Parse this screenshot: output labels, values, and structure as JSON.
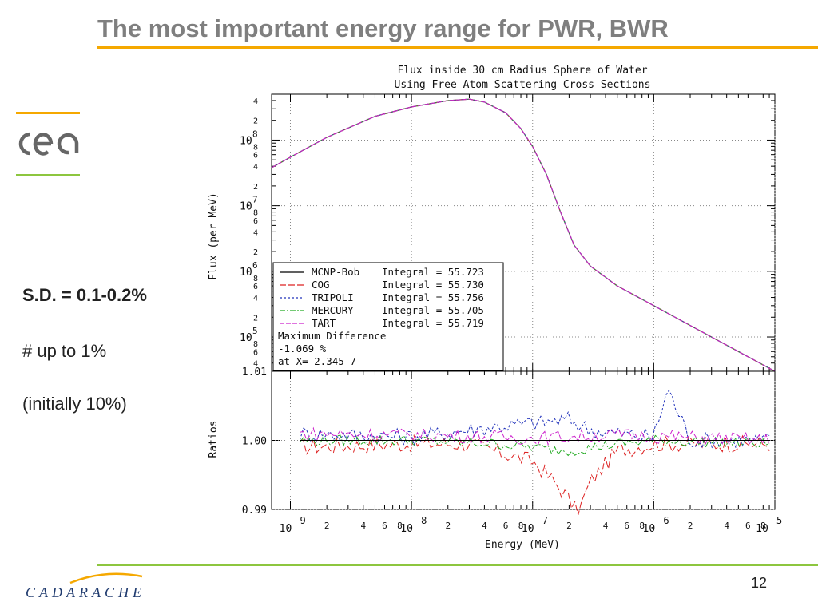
{
  "slide": {
    "title": "The most important energy range for PWR, BWR",
    "notes": [
      "S.D. = 0.1-0.2%",
      "# up to 1%",
      "(initially 10%)"
    ],
    "page_number": "12",
    "footer_logo": "CADARACHE",
    "colors": {
      "accent_orange": "#f5a800",
      "accent_green": "#8dc63f",
      "title_gray": "#7f7f7f"
    }
  },
  "chart_data": [
    {
      "type": "line",
      "title": "Flux inside 30 cm Radius Sphere of Water",
      "subtitle": "Using Free Atom Scattering Cross Sections",
      "xlabel": "Energy (MeV)",
      "ylabel": "Flux (per MeV)",
      "x_scale": "log",
      "y_scale": "log",
      "xlim": [
        7e-10,
        1e-05
      ],
      "ylim": [
        30000.0,
        500000000.0
      ],
      "grid": true,
      "x_ticks": [
        {
          "mant": "10",
          "exp": "-9"
        },
        {
          "mant": "10",
          "exp": "-8"
        },
        {
          "mant": "10",
          "exp": "-7"
        },
        {
          "mant": "10",
          "exp": "-6"
        },
        {
          "mant": "10",
          "exp": "-5"
        }
      ],
      "x_minor_labels": [
        "2",
        "4",
        "6",
        "8"
      ],
      "y_ticks": [
        {
          "mant": "10",
          "exp": "5"
        },
        {
          "mant": "10",
          "exp": "6"
        },
        {
          "mant": "10",
          "exp": "7"
        },
        {
          "mant": "10",
          "exp": "8"
        }
      ],
      "y_minor_labels": [
        "2",
        "4",
        "6",
        "8"
      ],
      "series": [
        {
          "name": "MCNP-Bob",
          "integral_label": "Integral = 55.723",
          "color": "#000000",
          "dash": ""
        },
        {
          "name": "COG",
          "integral_label": "Integral = 55.730",
          "color": "#dd2222",
          "dash": "8,3"
        },
        {
          "name": "TRIPOLI",
          "integral_label": "Integral = 55.756",
          "color": "#2233bb",
          "dash": "3,2"
        },
        {
          "name": "MERCURY",
          "integral_label": "Integral = 55.705",
          "color": "#22aa22",
          "dash": "7,2,2,2"
        },
        {
          "name": "TART",
          "integral_label": "Integral = 55.719",
          "color": "#cc22cc",
          "dash": "6,2"
        }
      ],
      "flux_points": [
        {
          "x": 7e-10,
          "y": 38000000.0
        },
        {
          "x": 1e-09,
          "y": 55000000.0
        },
        {
          "x": 2e-09,
          "y": 110000000.0
        },
        {
          "x": 5e-09,
          "y": 230000000.0
        },
        {
          "x": 1e-08,
          "y": 320000000.0
        },
        {
          "x": 2e-08,
          "y": 400000000.0
        },
        {
          "x": 3e-08,
          "y": 420000000.0
        },
        {
          "x": 4e-08,
          "y": 380000000.0
        },
        {
          "x": 6e-08,
          "y": 260000000.0
        },
        {
          "x": 8e-08,
          "y": 150000000.0
        },
        {
          "x": 1e-07,
          "y": 80000000.0
        },
        {
          "x": 1.3e-07,
          "y": 30000000.0
        },
        {
          "x": 1.7e-07,
          "y": 8000000.0
        },
        {
          "x": 2.2e-07,
          "y": 2500000.0
        },
        {
          "x": 3e-07,
          "y": 1200000.0
        },
        {
          "x": 5e-07,
          "y": 600000.0
        },
        {
          "x": 1e-06,
          "y": 300000.0
        },
        {
          "x": 2e-06,
          "y": 150000.0
        },
        {
          "x": 5e-06,
          "y": 60000.0
        },
        {
          "x": 1e-05,
          "y": 30000.0
        }
      ],
      "legend_note_lines": [
        "Maximum Difference",
        "    -1.069 %",
        "at X= 2.345-7"
      ],
      "legend_position": "bottom-left"
    },
    {
      "type": "line",
      "ylabel": "Ratios",
      "x_scale": "log",
      "ylim": [
        0.99,
        1.01
      ],
      "grid": true,
      "y_ticks": [
        "0.99",
        "1.00",
        "1.01"
      ],
      "reference_line": 1.0,
      "ratio_profiles": [
        {
          "name": "COG",
          "points": [
            [
              1e-09,
              0.999
            ],
            [
              1e-08,
              0.9995
            ],
            [
              3e-08,
              0.9995
            ],
            [
              6e-08,
              0.998
            ],
            [
              1e-07,
              0.997
            ],
            [
              1.5e-07,
              0.994
            ],
            [
              2e-07,
              0.9915
            ],
            [
              2.345e-07,
              0.9893
            ],
            [
              3e-07,
              0.994
            ],
            [
              5e-07,
              0.9985
            ],
            [
              1e-06,
              0.9995
            ],
            [
              1e-05,
              0.9995
            ]
          ],
          "noise": 0.0012
        },
        {
          "name": "TRIPOLI",
          "points": [
            [
              1e-09,
              1.001
            ],
            [
              1e-08,
              1.0005
            ],
            [
              5e-08,
              1.002
            ],
            [
              1e-07,
              1.0025
            ],
            [
              2e-07,
              1.003
            ],
            [
              3e-07,
              1.0015
            ],
            [
              5e-07,
              1.001
            ],
            [
              1e-06,
              1.0005
            ],
            [
              1.3e-06,
              1.0075
            ],
            [
              1.6e-06,
              1.004
            ],
            [
              2e-06,
              1.0
            ],
            [
              1e-05,
              1.0
            ]
          ],
          "noise": 0.0012
        },
        {
          "name": "MERCURY",
          "points": [
            [
              1e-09,
              1.0
            ],
            [
              1e-08,
              1.0
            ],
            [
              5e-08,
              0.9995
            ],
            [
              1e-07,
              0.999
            ],
            [
              2e-07,
              0.9985
            ],
            [
              5e-07,
              0.9995
            ],
            [
              1e-06,
              1.0
            ],
            [
              1e-05,
              0.9995
            ]
          ],
          "noise": 0.0008
        },
        {
          "name": "TART",
          "points": [
            [
              1e-09,
              1.001
            ],
            [
              1e-08,
              1.0008
            ],
            [
              5e-08,
              1.0005
            ],
            [
              1e-07,
              1.0003
            ],
            [
              5e-07,
              1.0008
            ],
            [
              1e-06,
              1.0006
            ],
            [
              1e-05,
              1.0
            ]
          ],
          "noise": 0.001
        },
        {
          "name": "MCNP-Bob",
          "points": [
            [
              7e-10,
              1.0
            ],
            [
              1e-05,
              1.0
            ]
          ],
          "noise": 0
        }
      ]
    }
  ]
}
